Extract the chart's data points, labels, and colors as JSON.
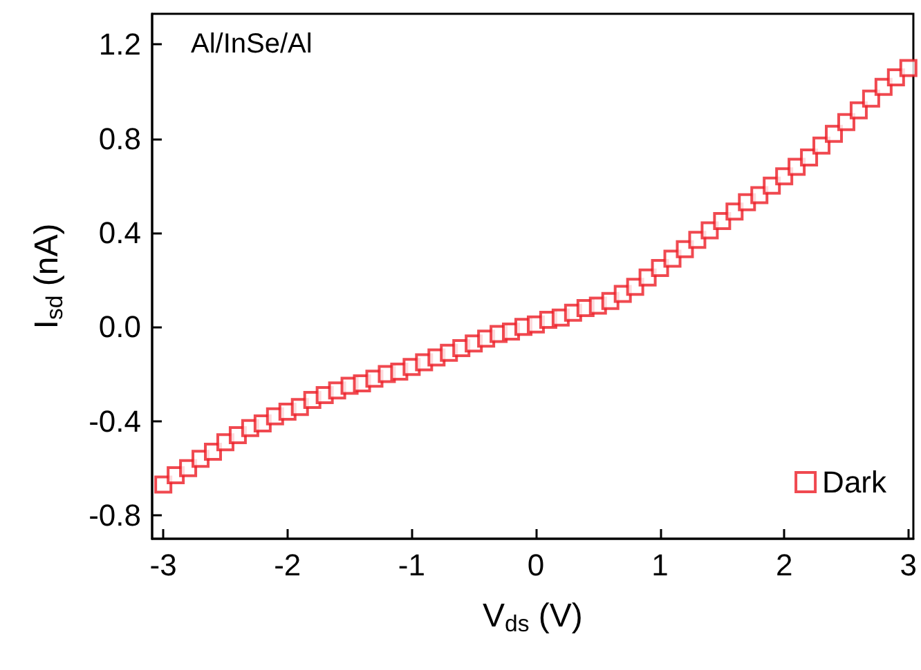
{
  "chart_data": {
    "type": "scatter",
    "xlabel": "V$_{ds}$ (V)",
    "ylabel": "I$_{sd}$ (nA)",
    "annotations": [
      "Al/InSe/Al"
    ],
    "xlim": [
      -3.09,
      3.04
    ],
    "xticks": [
      -3,
      -2,
      -1,
      0,
      1,
      2,
      3
    ],
    "ylim": [
      -0.9,
      1.33
    ],
    "yticks": [
      -0.8,
      -0.4,
      {
        "value": 0,
        "label": "0.0"
      },
      0.4,
      0.8,
      1.2
    ],
    "grid": false,
    "legend": "bottom right",
    "marker": "square",
    "series": [
      {
        "name": "Dark",
        "color": "#ec1c24",
        "x": [
          -3.0,
          -2.9,
          -2.8,
          -2.7,
          -2.6,
          -2.5,
          -2.4,
          -2.3,
          -2.2,
          -2.1,
          -2.0,
          -1.9,
          -1.8,
          -1.7,
          -1.6,
          -1.5,
          -1.4,
          -1.3,
          -1.2,
          -1.1,
          -1.0,
          -0.9,
          -0.8,
          -0.7,
          -0.6,
          -0.5,
          -0.4,
          -0.3,
          -0.2,
          -0.1,
          0,
          0.1,
          0.2,
          0.3,
          0.4,
          0.5,
          0.6,
          0.7,
          0.8,
          0.9,
          1.0,
          1.1,
          1.2,
          1.3,
          1.4,
          1.5,
          1.6,
          1.7,
          1.8,
          1.9,
          2.0,
          2.1,
          2.2,
          2.3,
          2.4,
          2.5,
          2.6,
          2.7,
          2.8,
          2.9,
          3.0
        ],
        "values": [
          -0.67,
          -0.63,
          -0.6,
          -0.56,
          -0.53,
          -0.49,
          -0.46,
          -0.43,
          -0.41,
          -0.38,
          -0.36,
          -0.34,
          -0.31,
          -0.29,
          -0.27,
          -0.25,
          -0.24,
          -0.22,
          -0.2,
          -0.19,
          -0.17,
          -0.15,
          -0.13,
          -0.11,
          -0.09,
          -0.07,
          -0.05,
          -0.03,
          -0.02,
          0.0,
          0.01,
          0.03,
          0.04,
          0.06,
          0.08,
          0.09,
          0.11,
          0.14,
          0.17,
          0.21,
          0.25,
          0.29,
          0.33,
          0.37,
          0.41,
          0.45,
          0.49,
          0.53,
          0.56,
          0.6,
          0.64,
          0.68,
          0.72,
          0.77,
          0.82,
          0.87,
          0.92,
          0.97,
          1.02,
          1.06,
          1.1
        ]
      }
    ]
  }
}
